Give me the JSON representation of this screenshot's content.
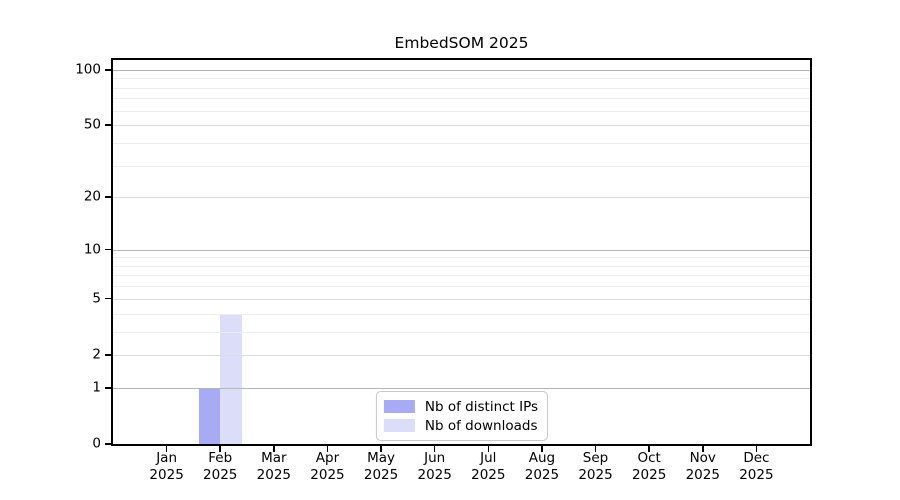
{
  "figure": {
    "background": "#ffffff",
    "text_color": "#000000"
  },
  "chart_data": {
    "type": "bar",
    "title": "EmbedSOM 2025",
    "xlabel": "",
    "ylabel": "",
    "categories": [
      "Jan 2025",
      "Feb 2025",
      "Mar 2025",
      "Apr 2025",
      "May 2025",
      "Jun 2025",
      "Jul 2025",
      "Aug 2025",
      "Sep 2025",
      "Oct 2025",
      "Nov 2025",
      "Dec 2025"
    ],
    "series": [
      {
        "name": "Nb of distinct IPs",
        "color": "#a9aaf4",
        "values": [
          0,
          1,
          0,
          0,
          0,
          0,
          0,
          0,
          0,
          0,
          0,
          0
        ]
      },
      {
        "name": "Nb of downloads",
        "color": "#dcddf8",
        "values": [
          0,
          4,
          0,
          0,
          0,
          0,
          0,
          0,
          0,
          0,
          0,
          0
        ]
      }
    ],
    "yscale": "log1p",
    "ylim": [
      0,
      113
    ],
    "yticks": [
      0,
      1,
      2,
      5,
      10,
      20,
      50,
      100
    ],
    "minor_gridlines": [
      3,
      4,
      6,
      7,
      8,
      9,
      30,
      40,
      60,
      70,
      80,
      90
    ],
    "strong_gridlines": [
      1,
      10,
      100
    ],
    "grid": true,
    "legend_position": "lower center"
  }
}
